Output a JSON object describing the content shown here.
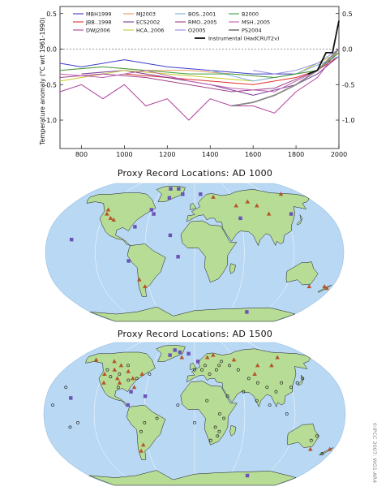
{
  "chart_data": {
    "type": "line",
    "ylabel": "Temperature anomaly  (°C wrt 1961-1990)",
    "xlim": [
      700,
      2000
    ],
    "ylim": [
      -1.4,
      0.6
    ],
    "x_ticks": [
      800,
      1000,
      1200,
      1400,
      1600,
      1800,
      2000
    ],
    "y_ticks": [
      0.5,
      0.0,
      -0.5,
      -1.0
    ],
    "y_tick_labels": [
      "0.5",
      "0.0",
      "-0.5",
      "-1.0"
    ],
    "zero_line": "dashed",
    "legend_position": "top",
    "series": [
      {
        "name": "MBH1999",
        "color": "#3c3cc8",
        "values": [
          [
            700,
            -0.2
          ],
          [
            800,
            -0.25
          ],
          [
            1000,
            -0.15
          ],
          [
            1100,
            -0.2
          ],
          [
            1200,
            -0.25
          ],
          [
            1400,
            -0.3
          ],
          [
            1600,
            -0.35
          ],
          [
            1800,
            -0.35
          ],
          [
            1900,
            -0.3
          ],
          [
            2000,
            -0.05
          ]
        ]
      },
      {
        "name": "JBB..1998",
        "color": "#e0302a",
        "values": [
          [
            1000,
            -0.35
          ],
          [
            1200,
            -0.4
          ],
          [
            1400,
            -0.45
          ],
          [
            1600,
            -0.5
          ],
          [
            1800,
            -0.4
          ],
          [
            1900,
            -0.3
          ],
          [
            2000,
            -0.1
          ]
        ]
      },
      {
        "name": "DWJ2006",
        "color": "#b0409a",
        "values": [
          [
            700,
            -0.6
          ],
          [
            800,
            -0.5
          ],
          [
            900,
            -0.7
          ],
          [
            1000,
            -0.5
          ],
          [
            1100,
            -0.8
          ],
          [
            1200,
            -0.7
          ],
          [
            1300,
            -1.0
          ],
          [
            1400,
            -0.7
          ],
          [
            1500,
            -0.8
          ],
          [
            1600,
            -0.8
          ],
          [
            1700,
            -0.9
          ],
          [
            1800,
            -0.6
          ],
          [
            1900,
            -0.4
          ],
          [
            2000,
            0.0
          ]
        ]
      },
      {
        "name": "MJ2003",
        "color": "#e89a60",
        "values": [
          [
            700,
            -0.3
          ],
          [
            900,
            -0.25
          ],
          [
            1100,
            -0.3
          ],
          [
            1300,
            -0.3
          ],
          [
            1500,
            -0.35
          ],
          [
            1700,
            -0.4
          ],
          [
            1900,
            -0.3
          ],
          [
            2000,
            -0.05
          ]
        ]
      },
      {
        "name": "ECS2002",
        "color": "#7a3a9a",
        "values": [
          [
            800,
            -0.35
          ],
          [
            1000,
            -0.3
          ],
          [
            1200,
            -0.4
          ],
          [
            1400,
            -0.5
          ],
          [
            1600,
            -0.65
          ],
          [
            1800,
            -0.5
          ],
          [
            1900,
            -0.35
          ],
          [
            2000,
            -0.1
          ]
        ]
      },
      {
        "name": "HCA..2006",
        "color": "#c8c830",
        "values": [
          [
            700,
            -0.45
          ],
          [
            900,
            -0.35
          ],
          [
            1000,
            -0.3
          ],
          [
            1200,
            -0.35
          ],
          [
            1400,
            -0.4
          ],
          [
            1600,
            -0.45
          ],
          [
            1800,
            -0.35
          ],
          [
            2000,
            -0.05
          ]
        ]
      },
      {
        "name": "BOS..2001",
        "color": "#7ab0e0",
        "values": [
          [
            1400,
            -0.3
          ],
          [
            1600,
            -0.45
          ],
          [
            1800,
            -0.35
          ],
          [
            2000,
            -0.1
          ]
        ]
      },
      {
        "name": "RMO..2005",
        "color": "#a0408a",
        "values": [
          [
            700,
            -0.4
          ],
          [
            900,
            -0.35
          ],
          [
            1100,
            -0.4
          ],
          [
            1300,
            -0.5
          ],
          [
            1500,
            -0.6
          ],
          [
            1700,
            -0.55
          ],
          [
            1900,
            -0.3
          ],
          [
            2000,
            -0.05
          ]
        ]
      },
      {
        "name": "O2005",
        "color": "#8c8ce0",
        "values": [
          [
            1600,
            -0.3
          ],
          [
            1700,
            -0.35
          ],
          [
            1800,
            -0.3
          ],
          [
            1900,
            -0.2
          ],
          [
            2000,
            0.0
          ]
        ]
      },
      {
        "name": "B2000",
        "color": "#40a040",
        "values": [
          [
            700,
            -0.3
          ],
          [
            900,
            -0.25
          ],
          [
            1100,
            -0.3
          ],
          [
            1300,
            -0.35
          ],
          [
            1500,
            -0.35
          ],
          [
            1700,
            -0.4
          ],
          [
            1900,
            -0.3
          ],
          [
            2000,
            -0.05
          ]
        ]
      },
      {
        "name": "MSH..2005",
        "color": "#c060b0",
        "values": [
          [
            700,
            -0.35
          ],
          [
            900,
            -0.4
          ],
          [
            1100,
            -0.3
          ],
          [
            1300,
            -0.45
          ],
          [
            1500,
            -0.55
          ],
          [
            1700,
            -0.6
          ],
          [
            1900,
            -0.3
          ],
          [
            2000,
            0.0
          ]
        ]
      },
      {
        "name": "PS2004",
        "color": "#888888",
        "values": [
          [
            1500,
            -0.8
          ],
          [
            1600,
            -0.75
          ],
          [
            1700,
            -0.65
          ],
          [
            1800,
            -0.5
          ],
          [
            1900,
            -0.3
          ],
          [
            2000,
            0.0
          ]
        ]
      },
      {
        "name": "Instrumental (HadCRUT2v)",
        "color": "#111111",
        "values": [
          [
            1856,
            -0.35
          ],
          [
            1900,
            -0.3
          ],
          [
            1940,
            -0.05
          ],
          [
            1970,
            -0.05
          ],
          [
            2000,
            0.4
          ]
        ]
      }
    ]
  },
  "maps": [
    {
      "title": "Proxy Record Locations:  AD 1000",
      "ocean_color": "#b8d8f4",
      "land_color": "#b7dc96",
      "triangle_color": "#b5542a",
      "square_color": "#6a52b8",
      "triangles": [
        [
          -118,
          45
        ],
        [
          -120,
          50
        ],
        [
          -105,
          38
        ],
        [
          -110,
          40
        ],
        [
          -70,
          -32
        ],
        [
          -65,
          -40
        ],
        [
          150,
          -40
        ],
        [
          175,
          -42
        ],
        [
          30,
          66
        ],
        [
          90,
          55
        ],
        [
          145,
          70
        ],
        [
          60,
          55
        ],
        [
          80,
          60
        ],
        [
          100,
          45
        ],
        [
          170,
          -40
        ]
      ],
      "squares": [
        [
          -40,
          65
        ],
        [
          -20,
          70
        ],
        [
          10,
          70
        ],
        [
          -60,
          50
        ],
        [
          -55,
          45
        ],
        [
          -75,
          30
        ],
        [
          -150,
          15
        ],
        [
          -20,
          -5
        ],
        [
          -80,
          -10
        ],
        [
          60,
          40
        ],
        [
          -30,
          20
        ],
        [
          130,
          45
        ],
        [
          90,
          -72
        ],
        [
          -45,
          78
        ],
        [
          -30,
          78
        ]
      ]
    },
    {
      "title": "Proxy Record Locations:  AD 1500",
      "ocean_color": "#b8d8f4",
      "land_color": "#b7dc96",
      "triangle_color": "#b5542a",
      "square_color": "#6a52b8",
      "triangles": [
        [
          -120,
          45
        ],
        [
          -110,
          50
        ],
        [
          -100,
          40
        ],
        [
          -95,
          35
        ],
        [
          -80,
          40
        ],
        [
          -120,
          60
        ],
        [
          -70,
          45
        ],
        [
          -150,
          62
        ],
        [
          -75,
          30
        ],
        [
          -115,
          35
        ],
        [
          -105,
          55
        ],
        [
          -90,
          48
        ],
        [
          -65,
          -35
        ],
        [
          -70,
          -42
        ],
        [
          150,
          -40
        ],
        [
          175,
          -40
        ],
        [
          20,
          65
        ],
        [
          30,
          68
        ],
        [
          60,
          62
        ],
        [
          90,
          55
        ],
        [
          110,
          55
        ],
        [
          130,
          65
        ],
        [
          -20,
          65
        ],
        [
          80,
          45
        ]
      ],
      "squares": [
        [
          -40,
          68
        ],
        [
          -25,
          72
        ],
        [
          -35,
          75
        ],
        [
          -150,
          18
        ],
        [
          -60,
          20
        ],
        [
          -80,
          10
        ],
        [
          90,
          -72
        ],
        [
          5,
          60
        ],
        [
          -10,
          70
        ],
        [
          -78,
          25
        ]
      ],
      "circles": [
        [
          -100,
          45
        ],
        [
          -110,
          42
        ],
        [
          -85,
          38
        ],
        [
          -95,
          30
        ],
        [
          -75,
          40
        ],
        [
          -60,
          45
        ],
        [
          -120,
          50
        ],
        [
          -95,
          55
        ],
        [
          0,
          50
        ],
        [
          10,
          50
        ],
        [
          15,
          55
        ],
        [
          20,
          45
        ],
        [
          30,
          50
        ],
        [
          35,
          55
        ],
        [
          40,
          60
        ],
        [
          50,
          55
        ],
        [
          60,
          50
        ],
        [
          70,
          40
        ],
        [
          80,
          35
        ],
        [
          90,
          30
        ],
        [
          100,
          25
        ],
        [
          110,
          35
        ],
        [
          120,
          30
        ],
        [
          130,
          35
        ],
        [
          140,
          40
        ],
        [
          25,
          -15
        ],
        [
          30,
          -20
        ],
        [
          28,
          -25
        ],
        [
          20,
          -30
        ],
        [
          35,
          -5
        ],
        [
          30,
          0
        ],
        [
          110,
          0
        ],
        [
          150,
          -25
        ],
        [
          145,
          -30
        ],
        [
          170,
          -45
        ],
        [
          -60,
          -10
        ],
        [
          -65,
          -20
        ],
        [
          -45,
          -5
        ],
        [
          -170,
          10
        ],
        [
          -160,
          30
        ],
        [
          -150,
          -15
        ],
        [
          -140,
          -10
        ],
        [
          0,
          -10
        ],
        [
          -20,
          10
        ],
        [
          15,
          15
        ],
        [
          40,
          20
        ],
        [
          60,
          25
        ],
        [
          75,
          15
        ],
        [
          90,
          10
        ]
      ]
    }
  ],
  "credit": "©IPCC 2007: WG1-AR4"
}
